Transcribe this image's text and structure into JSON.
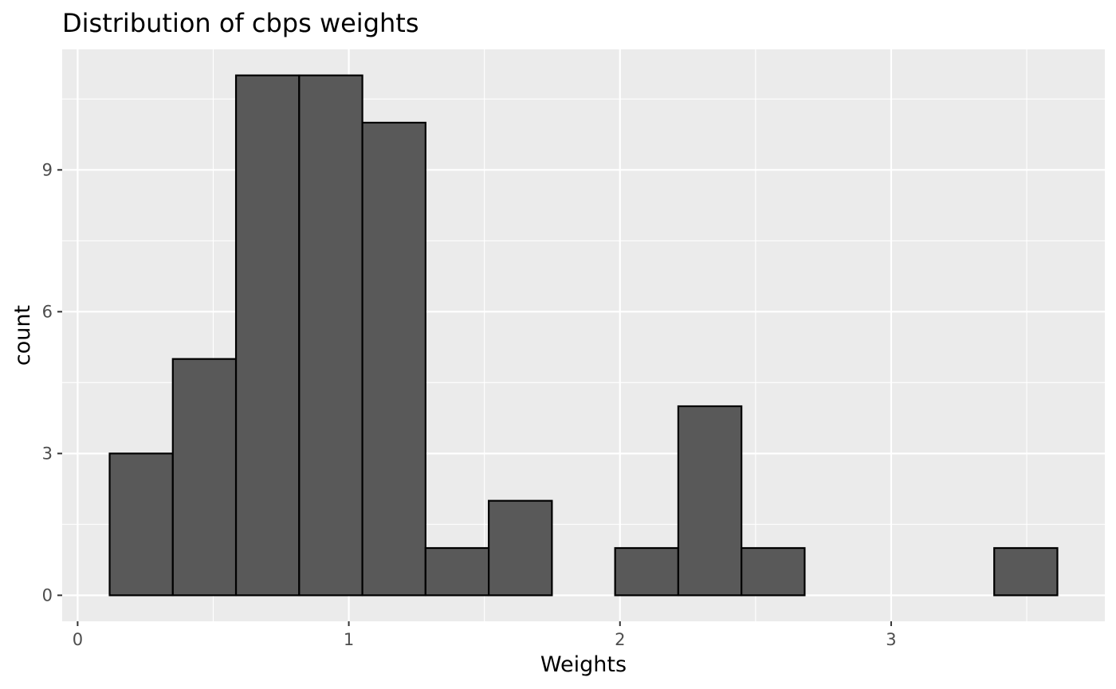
{
  "chart_data": {
    "type": "bar",
    "title": "Distribution of cbps weights",
    "xlabel": "Weights",
    "ylabel": "count",
    "bins": [
      {
        "x0": 0.118,
        "x1": 0.351,
        "count": 3
      },
      {
        "x0": 0.351,
        "x1": 0.584,
        "count": 5
      },
      {
        "x0": 0.584,
        "x1": 0.817,
        "count": 11
      },
      {
        "x0": 0.817,
        "x1": 1.05,
        "count": 11
      },
      {
        "x0": 1.05,
        "x1": 1.283,
        "count": 10
      },
      {
        "x0": 1.283,
        "x1": 1.516,
        "count": 1
      },
      {
        "x0": 1.516,
        "x1": 1.749,
        "count": 2
      },
      {
        "x0": 1.749,
        "x1": 1.982,
        "count": 0
      },
      {
        "x0": 1.982,
        "x1": 2.215,
        "count": 1
      },
      {
        "x0": 2.215,
        "x1": 2.448,
        "count": 4
      },
      {
        "x0": 2.448,
        "x1": 2.681,
        "count": 1
      },
      {
        "x0": 2.681,
        "x1": 2.914,
        "count": 0
      },
      {
        "x0": 2.914,
        "x1": 3.147,
        "count": 0
      },
      {
        "x0": 3.147,
        "x1": 3.38,
        "count": 0
      },
      {
        "x0": 3.38,
        "x1": 3.613,
        "count": 1
      }
    ],
    "x_ticks": [
      0,
      1,
      2,
      3
    ],
    "x_tick_labels": [
      "0",
      "1",
      "2",
      "3"
    ],
    "y_ticks": [
      0,
      3,
      6,
      9
    ],
    "y_tick_labels": [
      "0",
      "3",
      "6",
      "9"
    ],
    "xlim": [
      -0.057,
      3.788
    ],
    "ylim": [
      -0.55,
      11.55
    ],
    "grid": true,
    "colors": {
      "panel": "#ebebeb",
      "grid": "#ffffff",
      "bar_fill": "#595959",
      "bar_stroke": "#000000"
    }
  }
}
